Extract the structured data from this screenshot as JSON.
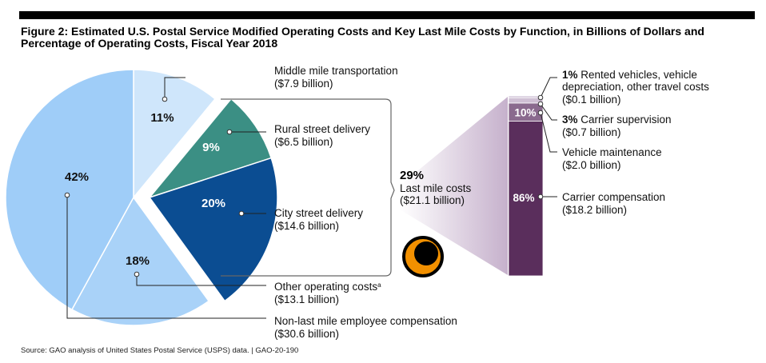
{
  "title": "Figure 2: Estimated U.S. Postal Service Modified Operating Costs and Key Last Mile Costs by Function, in Billions of Dollars and Percentage of Operating Costs, Fiscal Year 2018",
  "source": "Source: GAO analysis of United States Postal Service (USPS) data.  |  GAO-20-190",
  "colors": {
    "light_blue": "#cfe6fb",
    "mid_blue": "#a9d2f8",
    "big_blue": "#9fcdf8",
    "teal": "#3b8f84",
    "navy": "#0b4d92",
    "purple_dark": "#5a2e5c",
    "purple_mid": "#8a6a8e",
    "purple_light": "#cfc0d4",
    "orange": "#f29000"
  },
  "chart_data": [
    {
      "type": "pie",
      "unit": "billion dollars",
      "slices": [
        {
          "id": "middle-mile",
          "pct_label": "11%",
          "percent": 11,
          "label": "Middle mile transportation",
          "value_label": "($7.9 billion)",
          "value": 7.9,
          "exploded": false
        },
        {
          "id": "rural",
          "pct_label": "9%",
          "percent": 9,
          "label": "Rural street delivery",
          "value_label": "($6.5 billion)",
          "value": 6.5,
          "exploded": true
        },
        {
          "id": "city",
          "pct_label": "20%",
          "percent": 20,
          "label": "City street delivery",
          "value_label": "($14.6 billion)",
          "value": 14.6,
          "exploded": true
        },
        {
          "id": "other",
          "pct_label": "18%",
          "percent": 18,
          "label": "Other operating costs",
          "label_sup": "a",
          "value_label": "($13.1 billion)",
          "value": 13.1,
          "exploded": false
        },
        {
          "id": "non-last-mile",
          "pct_label": "42%",
          "percent": 42,
          "label": "Non-last mile employee compensation",
          "value_label": "($30.6 billion)",
          "value": 30.6,
          "exploded": false
        }
      ],
      "group": {
        "pct_label": "29%",
        "percent": 29,
        "label": "Last mile costs",
        "value_label": "($21.1 billion)",
        "value": 21.1
      }
    },
    {
      "type": "bar",
      "stacked": true,
      "segments": [
        {
          "id": "rented",
          "percent": 1,
          "pct_label": "1%",
          "label": "Rented vehicles, vehicle depreciation, other travel costs",
          "label_lines": [
            "Rented vehicles, vehicle",
            "depreciation, other travel costs"
          ],
          "value_label": "($0.1 billion)",
          "value": 0.1
        },
        {
          "id": "supervision",
          "percent": 3,
          "pct_label": "3%",
          "label": "Carrier supervision",
          "value_label": "($0.7 billion)",
          "value": 0.7
        },
        {
          "id": "maintenance",
          "percent": 10,
          "pct_label": "10%",
          "label": "Vehicle maintenance",
          "value_label": "($2.0 billion)",
          "value": 2.0
        },
        {
          "id": "compensation",
          "percent": 86,
          "pct_label": "86%",
          "label": "Carrier compensation",
          "value_label": "($18.2 billion)",
          "value": 18.2
        }
      ]
    }
  ]
}
